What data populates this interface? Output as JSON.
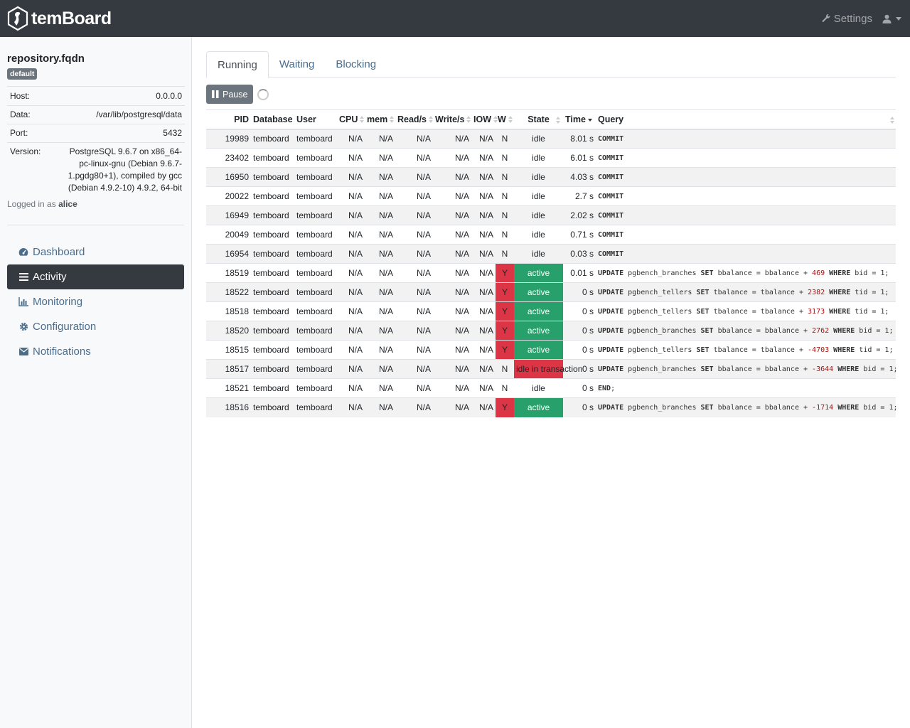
{
  "navbar": {
    "brand": "temBoard",
    "settings_label": "Settings"
  },
  "instance": {
    "name": "repository.fqdn",
    "group_badge": "default",
    "info": [
      {
        "key": "Host:",
        "value": "0.0.0.0"
      },
      {
        "key": "Data:",
        "value": "/var/lib/postgresql/data"
      },
      {
        "key": "Port:",
        "value": "5432"
      },
      {
        "key": "Version:",
        "value": "PostgreSQL 9.6.7 on x86_64-pc-linux-gnu (Debian 9.6.7-1.pgdg80+1), compiled by gcc (Debian 4.9.2-10) 4.9.2, 64-bit"
      }
    ],
    "logged_prefix": "Logged in as",
    "user": "alice"
  },
  "menu": [
    {
      "label": "Dashboard",
      "icon": "dashboard-icon",
      "active": false
    },
    {
      "label": "Activity",
      "icon": "list-icon",
      "active": true
    },
    {
      "label": "Monitoring",
      "icon": "bar-chart-icon",
      "active": false
    },
    {
      "label": "Configuration",
      "icon": "gear-icon",
      "active": false
    },
    {
      "label": "Notifications",
      "icon": "envelope-icon",
      "active": false
    }
  ],
  "tabs": [
    {
      "label": "Running",
      "active": true
    },
    {
      "label": "Waiting",
      "active": false
    },
    {
      "label": "Blocking",
      "active": false
    }
  ],
  "toolbar": {
    "pause_label": "Pause"
  },
  "table": {
    "columns": [
      "PID",
      "Database",
      "User",
      "CPU",
      "mem",
      "Read/s",
      "Write/s",
      "IOW",
      "W",
      "State",
      "Time",
      "Query"
    ],
    "sorted_column": "Time",
    "rows": [
      {
        "pid": "19989",
        "db": "temboard",
        "user": "temboard",
        "cpu": "N/A",
        "mem": "N/A",
        "read": "N/A",
        "write": "N/A",
        "iow": "N/A",
        "w": "N",
        "state": "idle",
        "time": "8.01 s",
        "query": [
          [
            "kw",
            "COMMIT"
          ]
        ]
      },
      {
        "pid": "23402",
        "db": "temboard",
        "user": "temboard",
        "cpu": "N/A",
        "mem": "N/A",
        "read": "N/A",
        "write": "N/A",
        "iow": "N/A",
        "w": "N",
        "state": "idle",
        "time": "6.01 s",
        "query": [
          [
            "kw",
            "COMMIT"
          ]
        ]
      },
      {
        "pid": "16950",
        "db": "temboard",
        "user": "temboard",
        "cpu": "N/A",
        "mem": "N/A",
        "read": "N/A",
        "write": "N/A",
        "iow": "N/A",
        "w": "N",
        "state": "idle",
        "time": "4.03 s",
        "query": [
          [
            "kw",
            "COMMIT"
          ]
        ]
      },
      {
        "pid": "20022",
        "db": "temboard",
        "user": "temboard",
        "cpu": "N/A",
        "mem": "N/A",
        "read": "N/A",
        "write": "N/A",
        "iow": "N/A",
        "w": "N",
        "state": "idle",
        "time": "2.7 s",
        "query": [
          [
            "kw",
            "COMMIT"
          ]
        ]
      },
      {
        "pid": "16949",
        "db": "temboard",
        "user": "temboard",
        "cpu": "N/A",
        "mem": "N/A",
        "read": "N/A",
        "write": "N/A",
        "iow": "N/A",
        "w": "N",
        "state": "idle",
        "time": "2.02 s",
        "query": [
          [
            "kw",
            "COMMIT"
          ]
        ]
      },
      {
        "pid": "20049",
        "db": "temboard",
        "user": "temboard",
        "cpu": "N/A",
        "mem": "N/A",
        "read": "N/A",
        "write": "N/A",
        "iow": "N/A",
        "w": "N",
        "state": "idle",
        "time": "0.71 s",
        "query": [
          [
            "kw",
            "COMMIT"
          ]
        ]
      },
      {
        "pid": "16954",
        "db": "temboard",
        "user": "temboard",
        "cpu": "N/A",
        "mem": "N/A",
        "read": "N/A",
        "write": "N/A",
        "iow": "N/A",
        "w": "N",
        "state": "idle",
        "time": "0.03 s",
        "query": [
          [
            "kw",
            "COMMIT"
          ]
        ]
      },
      {
        "pid": "18519",
        "db": "temboard",
        "user": "temboard",
        "cpu": "N/A",
        "mem": "N/A",
        "read": "N/A",
        "write": "N/A",
        "iow": "N/A",
        "w": "Y",
        "state": "active",
        "time": "0.01 s",
        "query": [
          [
            "kw",
            "UPDATE"
          ],
          [
            "t",
            " pgbench_branches "
          ],
          [
            "kw",
            "SET"
          ],
          [
            "t",
            " bbalance = bbalance + "
          ],
          [
            "num",
            "469"
          ],
          [
            "t",
            " "
          ],
          [
            "kw",
            "WHERE"
          ],
          [
            "t",
            " bid = 1;"
          ]
        ]
      },
      {
        "pid": "18522",
        "db": "temboard",
        "user": "temboard",
        "cpu": "N/A",
        "mem": "N/A",
        "read": "N/A",
        "write": "N/A",
        "iow": "N/A",
        "w": "Y",
        "state": "active",
        "time": "0 s",
        "query": [
          [
            "kw",
            "UPDATE"
          ],
          [
            "t",
            " pgbench_tellers "
          ],
          [
            "kw",
            "SET"
          ],
          [
            "t",
            " tbalance = tbalance + "
          ],
          [
            "num",
            "2382"
          ],
          [
            "t",
            " "
          ],
          [
            "kw",
            "WHERE"
          ],
          [
            "t",
            " tid = 1;"
          ]
        ]
      },
      {
        "pid": "18518",
        "db": "temboard",
        "user": "temboard",
        "cpu": "N/A",
        "mem": "N/A",
        "read": "N/A",
        "write": "N/A",
        "iow": "N/A",
        "w": "Y",
        "state": "active",
        "time": "0 s",
        "query": [
          [
            "kw",
            "UPDATE"
          ],
          [
            "t",
            " pgbench_tellers "
          ],
          [
            "kw",
            "SET"
          ],
          [
            "t",
            " tbalance = tbalance + "
          ],
          [
            "num",
            "3173"
          ],
          [
            "t",
            " "
          ],
          [
            "kw",
            "WHERE"
          ],
          [
            "t",
            " tid = 1;"
          ]
        ]
      },
      {
        "pid": "18520",
        "db": "temboard",
        "user": "temboard",
        "cpu": "N/A",
        "mem": "N/A",
        "read": "N/A",
        "write": "N/A",
        "iow": "N/A",
        "w": "Y",
        "state": "active",
        "time": "0 s",
        "query": [
          [
            "kw",
            "UPDATE"
          ],
          [
            "t",
            " pgbench_branches "
          ],
          [
            "kw",
            "SET"
          ],
          [
            "t",
            " bbalance = bbalance + "
          ],
          [
            "num",
            "2762"
          ],
          [
            "t",
            " "
          ],
          [
            "kw",
            "WHERE"
          ],
          [
            "t",
            " bid = 1;"
          ]
        ]
      },
      {
        "pid": "18515",
        "db": "temboard",
        "user": "temboard",
        "cpu": "N/A",
        "mem": "N/A",
        "read": "N/A",
        "write": "N/A",
        "iow": "N/A",
        "w": "Y",
        "state": "active",
        "time": "0 s",
        "query": [
          [
            "kw",
            "UPDATE"
          ],
          [
            "t",
            " pgbench_tellers "
          ],
          [
            "kw",
            "SET"
          ],
          [
            "t",
            " tbalance = tbalance + "
          ],
          [
            "num",
            "-4703"
          ],
          [
            "t",
            " "
          ],
          [
            "kw",
            "WHERE"
          ],
          [
            "t",
            " tid = 1;"
          ]
        ]
      },
      {
        "pid": "18517",
        "db": "temboard",
        "user": "temboard",
        "cpu": "N/A",
        "mem": "N/A",
        "read": "N/A",
        "write": "N/A",
        "iow": "N/A",
        "w": "N",
        "state": "idle in transaction",
        "time": "0 s",
        "query": [
          [
            "kw",
            "UPDATE"
          ],
          [
            "t",
            " pgbench_branches "
          ],
          [
            "kw",
            "SET"
          ],
          [
            "t",
            " bbalance = bbalance + "
          ],
          [
            "num",
            "-3644"
          ],
          [
            "t",
            " "
          ],
          [
            "kw",
            "WHERE"
          ],
          [
            "t",
            " bid = 1;"
          ]
        ]
      },
      {
        "pid": "18521",
        "db": "temboard",
        "user": "temboard",
        "cpu": "N/A",
        "mem": "N/A",
        "read": "N/A",
        "write": "N/A",
        "iow": "N/A",
        "w": "N",
        "state": "idle",
        "time": "0 s",
        "query": [
          [
            "kw",
            "END"
          ],
          [
            "t",
            ";"
          ]
        ]
      },
      {
        "pid": "18516",
        "db": "temboard",
        "user": "temboard",
        "cpu": "N/A",
        "mem": "N/A",
        "read": "N/A",
        "write": "N/A",
        "iow": "N/A",
        "w": "Y",
        "state": "active",
        "time": "0 s",
        "query": [
          [
            "kw",
            "UPDATE"
          ],
          [
            "t",
            " pgbench_branches "
          ],
          [
            "kw",
            "SET"
          ],
          [
            "t",
            " bbalance = bbalance + "
          ],
          [
            "num",
            "-1714"
          ],
          [
            "t",
            " "
          ],
          [
            "kw",
            "WHERE"
          ],
          [
            "t",
            " bid = 1;"
          ]
        ]
      }
    ]
  },
  "colors": {
    "navbar": "#343a40",
    "waiting": "#dc3545",
    "active": "#28a06b",
    "link": "#4a6d8c"
  }
}
